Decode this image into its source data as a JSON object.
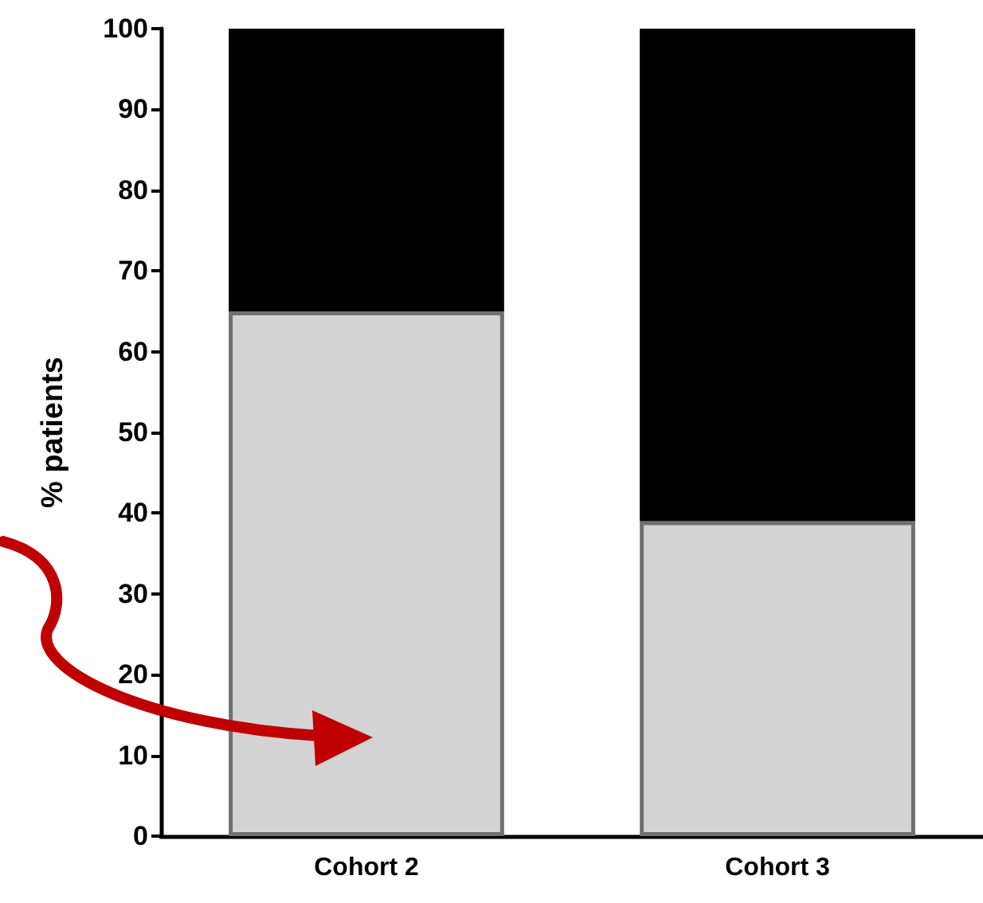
{
  "chart_data": {
    "type": "bar",
    "stacked": true,
    "ylabel": "% patients",
    "categories": [
      "Cohort 2",
      "Cohort 3"
    ],
    "series": [
      {
        "color": "#d3d3d3",
        "values": [
          65,
          39
        ]
      },
      {
        "color": "#000000",
        "values": [
          35,
          61
        ]
      }
    ],
    "ylim": [
      0,
      100
    ],
    "yticks": [
      0,
      10,
      20,
      30,
      40,
      50,
      60,
      70,
      80,
      90,
      100
    ],
    "grid": false
  }
}
